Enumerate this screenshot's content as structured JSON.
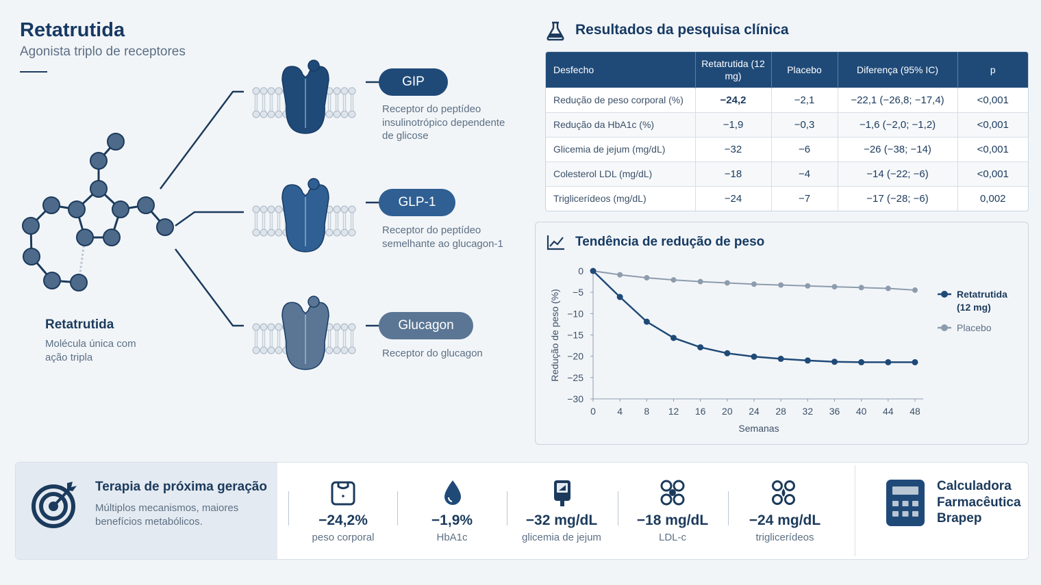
{
  "header": {
    "title": "Retatrutida",
    "subtitle": "Agonista triplo de receptores"
  },
  "molecule": {
    "title": "Retatrutida",
    "desc": "Molécula única com ação tripla"
  },
  "receptors": [
    {
      "label": "GIP",
      "desc": "Receptor do peptídeo insulinotrópico dependente de glicose",
      "color": "#1f4a78"
    },
    {
      "label": "GLP-1",
      "desc": "Receptor do peptídeo semelhante ao glucagon-1",
      "color": "#2f5f93"
    },
    {
      "label": "Glucagon",
      "desc": "Receptor do glucagon",
      "color": "#5a7694"
    }
  ],
  "table": {
    "heading": "Resultados da pesquisa clínica",
    "headers": [
      "Desfecho",
      "Retatrutida (12 mg)",
      "Placebo",
      "Diferença (95% IC)",
      "p"
    ],
    "rows": [
      [
        "Redução de peso corporal (%)",
        "−24,2",
        "−2,1",
        "−22,1 (−26,8; −17,4)",
        "<0,001"
      ],
      [
        "Redução da HbA1c (%)",
        "−1,9",
        "−0,3",
        "−1,6 (−2,0; −1,2)",
        "<0,001"
      ],
      [
        "Glicemia de jejum (mg/dL)",
        "−32",
        "−6",
        "−26 (−38; −14)",
        "<0,001"
      ],
      [
        "Colesterol LDL (mg/dL)",
        "−18",
        "−4",
        "−14 (−22; −6)",
        "<0,001"
      ],
      [
        "Triglicerídeos (mg/dL)",
        "−24",
        "−7",
        "−17 (−28; −6)",
        "0,002"
      ]
    ]
  },
  "chart_data": {
    "type": "line",
    "title": "Tendência de redução de peso",
    "xlabel": "Semanas",
    "ylabel": "Redução de peso (%)",
    "x": [
      0,
      4,
      8,
      12,
      16,
      20,
      24,
      28,
      32,
      36,
      40,
      44,
      48
    ],
    "ylim": [
      -30,
      0
    ],
    "yticks": [
      0,
      -5,
      -10,
      -15,
      -20,
      -25,
      -30
    ],
    "legend_position": "right",
    "grid": false,
    "series": [
      {
        "name": "Retatrutida (12 mg)",
        "color": "#1f4a78",
        "values": [
          0,
          -6.1,
          -11.9,
          -15.7,
          -17.9,
          -19.3,
          -20.1,
          -20.6,
          -21.0,
          -21.3,
          -21.4,
          -21.4,
          -21.4
        ]
      },
      {
        "name": "Placebo",
        "color": "#8c9cad",
        "values": [
          0,
          -0.9,
          -1.6,
          -2.1,
          -2.5,
          -2.8,
          -3.1,
          -3.3,
          -3.5,
          -3.7,
          -3.9,
          -4.1,
          -4.5
        ]
      }
    ]
  },
  "bottom": {
    "title": "Terapia de próxima geração",
    "desc": "Múltiplos mecanismos, maiores benefícios metabólicos.",
    "stats": [
      {
        "value": "−24,2%",
        "label": "peso corporal",
        "icon": "scale-icon"
      },
      {
        "value": "−1,9%",
        "label": "HbA1c",
        "icon": "drop-icon"
      },
      {
        "value": "−32 mg/dL",
        "label": "glicemia de jejum",
        "icon": "glucometer-icon"
      },
      {
        "value": "−18 mg/dL",
        "label": "LDL-c",
        "icon": "ldl-particles-icon"
      },
      {
        "value": "−24 mg/dL",
        "label": "triglicerídeos",
        "icon": "triglyceride-icon"
      }
    ],
    "calculator": "Calculadora Farmacêutica Brapep"
  }
}
